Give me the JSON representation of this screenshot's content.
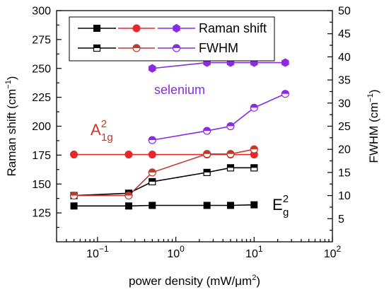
{
  "chart_data": {
    "type": "scatter",
    "xlabel_main": "power density (mW/μm",
    "xlabel_sup": "2",
    "xlabel_end": ")",
    "ylabel_left_main": "Raman shift (cm",
    "ylabel_left_sup": "−1",
    "ylabel_left_end": ")",
    "ylabel_right_main": "FWHM (cm",
    "ylabel_right_sup": "−1",
    "ylabel_right_end": ")",
    "x_scale": "log",
    "xlim": [
      0.03,
      100
    ],
    "ylim_left": [
      100,
      300
    ],
    "ylim_right": [
      0,
      50
    ],
    "x_ticks": [
      {
        "value": 0.1,
        "base": "10",
        "exp": "−1"
      },
      {
        "value": 1,
        "base": "10",
        "exp": "0"
      },
      {
        "value": 10,
        "base": "10",
        "exp": "1"
      },
      {
        "value": 100,
        "base": "10",
        "exp": "2"
      }
    ],
    "y_left_ticks": [
      125,
      150,
      175,
      200,
      225,
      250,
      275,
      300
    ],
    "y_right_ticks": [
      5,
      10,
      15,
      20,
      25,
      30,
      35,
      40,
      45,
      50
    ],
    "series": [
      {
        "group": "E2g",
        "kind": "raman",
        "axis": "left",
        "color": "#000000",
        "marker": "square-filled",
        "x": [
          0.05,
          0.25,
          0.5,
          2.5,
          5,
          10
        ],
        "y": [
          131,
          131,
          131.5,
          131.5,
          131.5,
          132
        ]
      },
      {
        "group": "A21g",
        "kind": "raman",
        "axis": "left",
        "color": "#e8262b",
        "marker": "circle-filled",
        "x": [
          0.05,
          0.25,
          0.5,
          2.5,
          5,
          10
        ],
        "y": [
          175.5,
          175.5,
          175.5,
          175.5,
          175.5,
          175.5
        ]
      },
      {
        "group": "selenium",
        "kind": "raman",
        "axis": "left",
        "color": "#8a2be2",
        "marker": "hexagon-filled",
        "x": [
          0.5,
          2.5,
          5,
          10,
          25
        ],
        "y": [
          250,
          255,
          255,
          255,
          255
        ]
      },
      {
        "group": "E2g",
        "kind": "fwhm",
        "axis": "right",
        "color": "#000000",
        "marker": "square-half",
        "x": [
          0.05,
          0.25,
          0.5,
          2.5,
          5,
          10
        ],
        "y": [
          10,
          10.5,
          13,
          15,
          16,
          16
        ]
      },
      {
        "group": "A21g",
        "kind": "fwhm",
        "axis": "right",
        "color": "#c0392b",
        "marker": "circle-half",
        "x": [
          0.05,
          0.25,
          0.5,
          2.5,
          5,
          10
        ],
        "y": [
          10,
          10,
          15,
          19,
          19,
          20
        ]
      },
      {
        "group": "selenium",
        "kind": "fwhm",
        "axis": "right",
        "color": "#8a2be2",
        "marker": "circle-half",
        "x": [
          0.5,
          2.5,
          5,
          10,
          25
        ],
        "y": [
          22,
          24,
          25,
          29,
          32
        ]
      }
    ],
    "legend": {
      "position": "top-left",
      "rows": [
        {
          "label": "Raman shift",
          "items": [
            {
              "color": "#000000",
              "marker": "square-filled"
            },
            {
              "color": "#e8262b",
              "marker": "circle-filled"
            },
            {
              "color": "#8a2be2",
              "marker": "hexagon-filled"
            }
          ]
        },
        {
          "label": "FWHM",
          "items": [
            {
              "color": "#000000",
              "marker": "square-half"
            },
            {
              "color": "#c0392b",
              "marker": "circle-half"
            },
            {
              "color": "#8a2be2",
              "marker": "circle-half"
            }
          ]
        }
      ]
    },
    "annotations": {
      "selenium": {
        "text": "selenium",
        "color": "#8a2be2"
      },
      "a1g": {
        "base": "A",
        "sup": "2",
        "sub": "1g",
        "color": "#c0392b"
      },
      "e2g": {
        "base": "E",
        "sup": "2",
        "sub": "g",
        "color": "#000000"
      }
    }
  }
}
